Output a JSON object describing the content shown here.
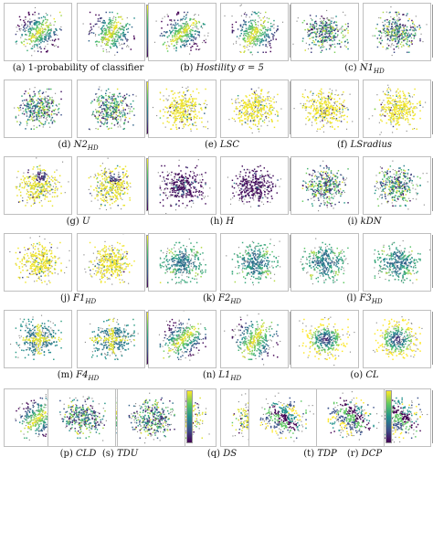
{
  "figure": {
    "panels": [
      {
        "id": "a",
        "label": "(a)",
        "name": "1-probability of classifier",
        "sub": "",
        "style": "plain",
        "pattern": "diagonal"
      },
      {
        "id": "b",
        "label": "(b)",
        "name": "Hostility",
        "sub": "",
        "suffix": "σ = 5",
        "style": "italic",
        "pattern": "diagonal"
      },
      {
        "id": "c",
        "label": "(c)",
        "name": "N1",
        "sub": "HD",
        "style": "italic",
        "pattern": "noisy"
      },
      {
        "id": "d",
        "label": "(d)",
        "name": "N2",
        "sub": "HD",
        "style": "italic",
        "pattern": "noisy"
      },
      {
        "id": "e",
        "label": "(e)",
        "name": "LSC",
        "sub": "",
        "style": "italic",
        "pattern": "yellow"
      },
      {
        "id": "f",
        "label": "(f)",
        "name": "LSradius",
        "sub": "",
        "style": "italic",
        "pattern": "yellow"
      },
      {
        "id": "g",
        "label": "(g)",
        "name": "U",
        "sub": "",
        "style": "italic",
        "pattern": "yellow-spot"
      },
      {
        "id": "h",
        "label": "(h)",
        "name": "H",
        "sub": "",
        "style": "italic",
        "pattern": "dark"
      },
      {
        "id": "i",
        "label": "(i)",
        "name": "kDN",
        "sub": "",
        "style": "italic",
        "pattern": "noisy"
      },
      {
        "id": "j",
        "label": "(j)",
        "name": "F1",
        "sub": "HD",
        "style": "italic",
        "pattern": "yellow"
      },
      {
        "id": "k",
        "label": "(k)",
        "name": "F2",
        "sub": "HD",
        "style": "italic",
        "pattern": "radial"
      },
      {
        "id": "l",
        "label": "(l)",
        "name": "F3",
        "sub": "HD",
        "style": "italic",
        "pattern": "radial"
      },
      {
        "id": "m",
        "label": "(m)",
        "name": "F4",
        "sub": "HD",
        "style": "italic",
        "pattern": "cross"
      },
      {
        "id": "n",
        "label": "(n)",
        "name": "L1",
        "sub": "HD",
        "style": "italic",
        "pattern": "diagonal"
      },
      {
        "id": "o",
        "label": "(o)",
        "name": "CL",
        "sub": "",
        "style": "italic",
        "pattern": "center-dark"
      },
      {
        "id": "p",
        "label": "(p)",
        "name": "CLD",
        "sub": "",
        "style": "italic",
        "pattern": "diagonal"
      },
      {
        "id": "q",
        "label": "(q)",
        "name": "DS",
        "sub": "",
        "style": "italic",
        "pattern": "yellow-blocks"
      },
      {
        "id": "r",
        "label": "(r)",
        "name": "DCP",
        "sub": "",
        "style": "italic",
        "pattern": "blocks"
      },
      {
        "id": "s",
        "label": "(s)",
        "name": "TDU",
        "sub": "",
        "style": "italic",
        "pattern": "noisy"
      },
      {
        "id": "t",
        "label": "(t)",
        "name": "TDP",
        "sub": "",
        "style": "italic",
        "pattern": "blocks"
      }
    ],
    "colormap": [
      "#440154",
      "#3b528b",
      "#21918c",
      "#5ec962",
      "#fde725"
    ],
    "background_points_color": "#8c8c8c"
  }
}
